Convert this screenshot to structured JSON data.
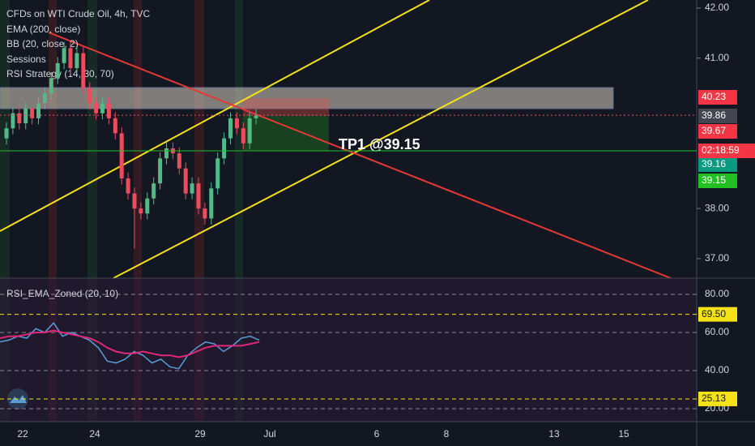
{
  "chart_data": {
    "type": "candlestick",
    "title": "CFDs on WTI Crude Oil, 4h, TVC",
    "indicators": [
      "EMA (200, close)",
      "BB (20, close, 2)",
      "Sessions",
      "RSI Strategy (14, 30, 70)"
    ],
    "up_color": "#53b987",
    "down_color": "#eb4d5c",
    "candles": [
      [
        39.4,
        39.72,
        39.28,
        39.6
      ],
      [
        39.6,
        40.02,
        39.48,
        39.9
      ],
      [
        39.9,
        40.02,
        39.58,
        39.7
      ],
      [
        39.7,
        40.12,
        39.58,
        40.0
      ],
      [
        40.0,
        40.12,
        39.68,
        39.8
      ],
      [
        39.8,
        40.22,
        39.68,
        40.1
      ],
      [
        40.1,
        40.42,
        39.98,
        40.3
      ],
      [
        40.3,
        40.72,
        40.18,
        40.6
      ],
      [
        40.6,
        41.02,
        40.48,
        40.9
      ],
      [
        40.9,
        41.32,
        40.78,
        41.2
      ],
      [
        41.2,
        41.32,
        40.68,
        40.8
      ],
      [
        40.8,
        41.22,
        40.68,
        41.1
      ],
      [
        41.1,
        41.22,
        40.28,
        40.4
      ],
      [
        40.4,
        40.52,
        39.98,
        40.1
      ],
      [
        40.1,
        40.22,
        39.78,
        39.9
      ],
      [
        39.9,
        40.22,
        39.78,
        40.1
      ],
      [
        40.1,
        40.22,
        39.68,
        39.8
      ],
      [
        39.8,
        39.92,
        39.38,
        39.5
      ],
      [
        39.5,
        39.62,
        38.48,
        38.6
      ],
      [
        38.6,
        38.72,
        38.18,
        38.3
      ],
      [
        38.3,
        38.42,
        37.2,
        38.0
      ],
      [
        38.0,
        38.12,
        37.78,
        37.9
      ],
      [
        37.9,
        38.32,
        37.78,
        38.2
      ],
      [
        38.2,
        38.62,
        38.08,
        38.5
      ],
      [
        38.5,
        39.12,
        38.38,
        39.0
      ],
      [
        39.0,
        39.32,
        38.88,
        39.2
      ],
      [
        39.2,
        39.32,
        38.98,
        39.1
      ],
      [
        39.1,
        39.22,
        38.68,
        38.8
      ],
      [
        38.8,
        38.92,
        38.18,
        38.3
      ],
      [
        38.3,
        38.62,
        38.18,
        38.5
      ],
      [
        38.5,
        38.62,
        37.88,
        38.0
      ],
      [
        38.0,
        38.12,
        37.68,
        37.8
      ],
      [
        37.8,
        38.52,
        37.68,
        38.4
      ],
      [
        38.4,
        39.12,
        38.28,
        39.0
      ],
      [
        39.0,
        39.52,
        38.88,
        39.4
      ],
      [
        39.4,
        39.92,
        39.28,
        39.8
      ],
      [
        39.8,
        39.92,
        39.48,
        39.6
      ],
      [
        39.6,
        39.72,
        39.18,
        39.3
      ],
      [
        39.3,
        39.92,
        39.18,
        39.8
      ],
      [
        39.8,
        39.98,
        39.68,
        39.86
      ]
    ],
    "ylim": [
      36.61,
      42.16
    ],
    "yticks": [
      {
        "value": 42,
        "label": "42.00"
      },
      {
        "value": 41,
        "label": "41.00"
      },
      {
        "value": 38,
        "label": "38.00"
      },
      {
        "value": 37,
        "label": "37.00"
      }
    ],
    "price_tags": [
      {
        "value": 40.23,
        "label": "40.23",
        "color": "#f23645"
      },
      {
        "value": 39.86,
        "label": "39.86",
        "color": "#434651"
      },
      {
        "value": 39.67,
        "label": "39.67",
        "color": "#f23645"
      },
      {
        "value": 39.16,
        "label": "39.16",
        "color": "#089981"
      },
      {
        "value": 39.15,
        "label": "39.15",
        "color": "#22c022"
      }
    ],
    "countdown": "02:18:59",
    "annotation": "TP1 @39.15",
    "x_labels": [
      "22",
      "24",
      "29",
      "Jul",
      "6",
      "8",
      "13",
      "15"
    ],
    "rsi": {
      "title": "RSI_EMA_Zoned (20, 10)",
      "ylim": [
        13.2,
        88.5
      ],
      "yticks": [
        {
          "value": 80,
          "label": "80.00"
        },
        {
          "value": 60,
          "label": "60.00"
        },
        {
          "value": 40,
          "label": "40.00"
        },
        {
          "value": 20,
          "label": "20.00"
        }
      ],
      "levels": [
        {
          "value": 69.5,
          "label": "69.50"
        },
        {
          "value": 25.13,
          "label": "25.13"
        }
      ],
      "series": [
        {
          "color": "#5b9cd6",
          "values": [
            55,
            56,
            58,
            57,
            62,
            60,
            65,
            58,
            60,
            58,
            56,
            52,
            45,
            44,
            46,
            50,
            48,
            44,
            46,
            42,
            41,
            48,
            52,
            55,
            54,
            50,
            53,
            57,
            58,
            56
          ]
        },
        {
          "color": "#e0287a",
          "values": [
            57,
            58,
            58,
            59,
            60,
            60,
            61,
            60,
            59,
            58,
            57,
            55,
            52,
            50,
            49,
            49,
            50,
            49,
            48,
            48,
            47,
            48,
            50,
            52,
            53,
            53,
            53,
            53,
            54,
            55
          ]
        }
      ]
    }
  }
}
